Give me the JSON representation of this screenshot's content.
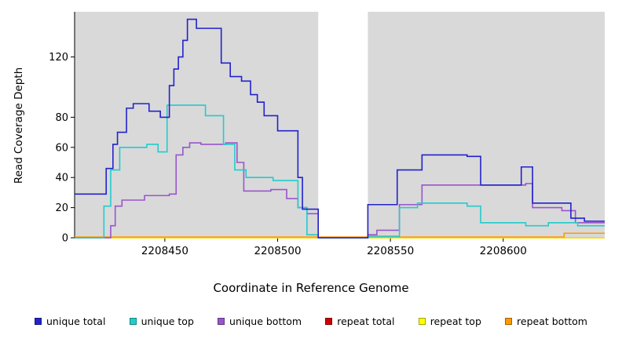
{
  "labels": {
    "ylabel": "Read Coverage Depth",
    "xlabel": "Coordinate in Reference Genome"
  },
  "chart_data": {
    "type": "line",
    "step": true,
    "title": "",
    "xlabel": "Coordinate in Reference Genome",
    "ylabel": "Read Coverage Depth",
    "xlim": [
      2208410,
      2208645
    ],
    "ylim": [
      0,
      150
    ],
    "x_ticks": [
      2208450,
      2208500,
      2208550,
      2208600
    ],
    "y_ticks": [
      0,
      20,
      40,
      60,
      80,
      120
    ],
    "panel_bg": "#d9d9d9",
    "gap_region": [
      2208518,
      2208540
    ],
    "grid": false,
    "legend_position": "bottom",
    "series": [
      {
        "name": "unique total",
        "color": "#2222cc",
        "points": [
          [
            2208410,
            29
          ],
          [
            2208424,
            46
          ],
          [
            2208427,
            62
          ],
          [
            2208429,
            70
          ],
          [
            2208433,
            86
          ],
          [
            2208436,
            89
          ],
          [
            2208443,
            84
          ],
          [
            2208448,
            80
          ],
          [
            2208452,
            101
          ],
          [
            2208454,
            112
          ],
          [
            2208456,
            120
          ],
          [
            2208458,
            131
          ],
          [
            2208460,
            145
          ],
          [
            2208464,
            139
          ],
          [
            2208475,
            116
          ],
          [
            2208479,
            107
          ],
          [
            2208484,
            104
          ],
          [
            2208488,
            95
          ],
          [
            2208491,
            90
          ],
          [
            2208494,
            81
          ],
          [
            2208500,
            71
          ],
          [
            2208509,
            40
          ],
          [
            2208511,
            19
          ],
          [
            2208518,
            0
          ],
          [
            2208540,
            22
          ],
          [
            2208553,
            45
          ],
          [
            2208564,
            55
          ],
          [
            2208584,
            54
          ],
          [
            2208590,
            35
          ],
          [
            2208608,
            47
          ],
          [
            2208613,
            23
          ],
          [
            2208630,
            13
          ],
          [
            2208636,
            11
          ]
        ]
      },
      {
        "name": "unique top",
        "color": "#22cccc",
        "points": [
          [
            2208410,
            0
          ],
          [
            2208423,
            21
          ],
          [
            2208426,
            45
          ],
          [
            2208430,
            60
          ],
          [
            2208442,
            62
          ],
          [
            2208447,
            57
          ],
          [
            2208451,
            88
          ],
          [
            2208468,
            81
          ],
          [
            2208476,
            62
          ],
          [
            2208481,
            45
          ],
          [
            2208486,
            40
          ],
          [
            2208498,
            38
          ],
          [
            2208509,
            20
          ],
          [
            2208513,
            2
          ],
          [
            2208518,
            0
          ],
          [
            2208540,
            1
          ],
          [
            2208554,
            20
          ],
          [
            2208562,
            23
          ],
          [
            2208584,
            21
          ],
          [
            2208590,
            10
          ],
          [
            2208610,
            8
          ],
          [
            2208620,
            10
          ],
          [
            2208633,
            8
          ]
        ]
      },
      {
        "name": "unique bottom",
        "color": "#9955cc",
        "points": [
          [
            2208410,
            0
          ],
          [
            2208426,
            8
          ],
          [
            2208428,
            21
          ],
          [
            2208431,
            25
          ],
          [
            2208441,
            28
          ],
          [
            2208452,
            29
          ],
          [
            2208455,
            55
          ],
          [
            2208458,
            60
          ],
          [
            2208461,
            63
          ],
          [
            2208466,
            62
          ],
          [
            2208477,
            63
          ],
          [
            2208482,
            50
          ],
          [
            2208485,
            31
          ],
          [
            2208497,
            32
          ],
          [
            2208504,
            26
          ],
          [
            2208509,
            20
          ],
          [
            2208513,
            16
          ],
          [
            2208518,
            0
          ],
          [
            2208540,
            2
          ],
          [
            2208544,
            5
          ],
          [
            2208554,
            22
          ],
          [
            2208564,
            35
          ],
          [
            2208610,
            36
          ],
          [
            2208613,
            20
          ],
          [
            2208626,
            18
          ],
          [
            2208632,
            10
          ]
        ]
      },
      {
        "name": "repeat total",
        "color": "#cc0000",
        "points": [
          [
            2208410,
            0
          ]
        ]
      },
      {
        "name": "repeat top",
        "color": "#ffff00",
        "points": [
          [
            2208410,
            0
          ]
        ]
      },
      {
        "name": "repeat bottom",
        "color": "#ff9900",
        "points": [
          [
            2208410,
            0.5
          ],
          [
            2208627,
            3
          ]
        ]
      }
    ]
  }
}
